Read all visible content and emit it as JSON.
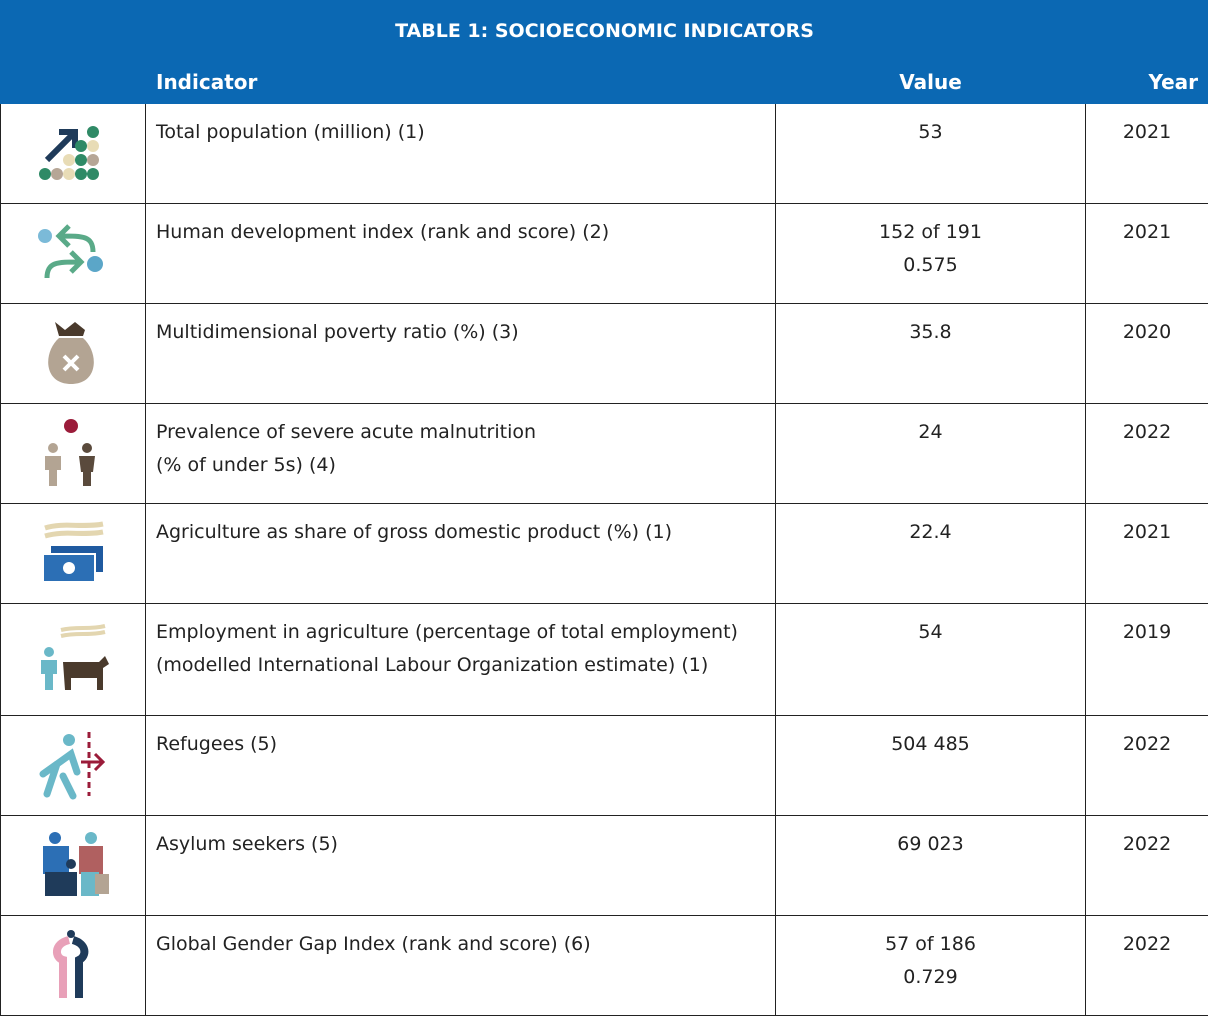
{
  "table": {
    "title": "TABLE 1: SOCIOECONOMIC INDICATORS",
    "headers": [
      "Indicator",
      "Value",
      "Year"
    ],
    "rows": [
      {
        "indicator": [
          "Total population (million) (1)"
        ],
        "value": [
          "53"
        ],
        "year": "2021"
      },
      {
        "indicator": [
          "Human development index (rank and score) (2)"
        ],
        "value": [
          "152 of 191",
          "0.575"
        ],
        "year": "2021"
      },
      {
        "indicator": [
          "Multidimensional poverty ratio (%) (3)"
        ],
        "value": [
          "35.8"
        ],
        "year": "2020"
      },
      {
        "indicator": [
          "Prevalence of severe acute malnutrition",
          "(% of under 5s) (4)"
        ],
        "value": [
          "24"
        ],
        "year": "2022"
      },
      {
        "indicator": [
          "Agriculture as share of gross domestic product (%) (1)"
        ],
        "value": [
          "22.4"
        ],
        "year": "2021"
      },
      {
        "indicator": [
          "Employment in agriculture (percentage of total employment) (modelled International Labour Organization estimate) (1)"
        ],
        "value": [
          "54"
        ],
        "year": "2019"
      },
      {
        "indicator": [
          "Refugees (5)"
        ],
        "value": [
          "504 485"
        ],
        "year": "2022"
      },
      {
        "indicator": [
          "Asylum seekers (5)"
        ],
        "value": [
          "69 023"
        ],
        "year": "2022"
      },
      {
        "indicator": [
          "Global Gender Gap Index (rank and score) (6)"
        ],
        "value": [
          "57 of 186",
          "0.729"
        ],
        "year": "2022"
      }
    ]
  }
}
